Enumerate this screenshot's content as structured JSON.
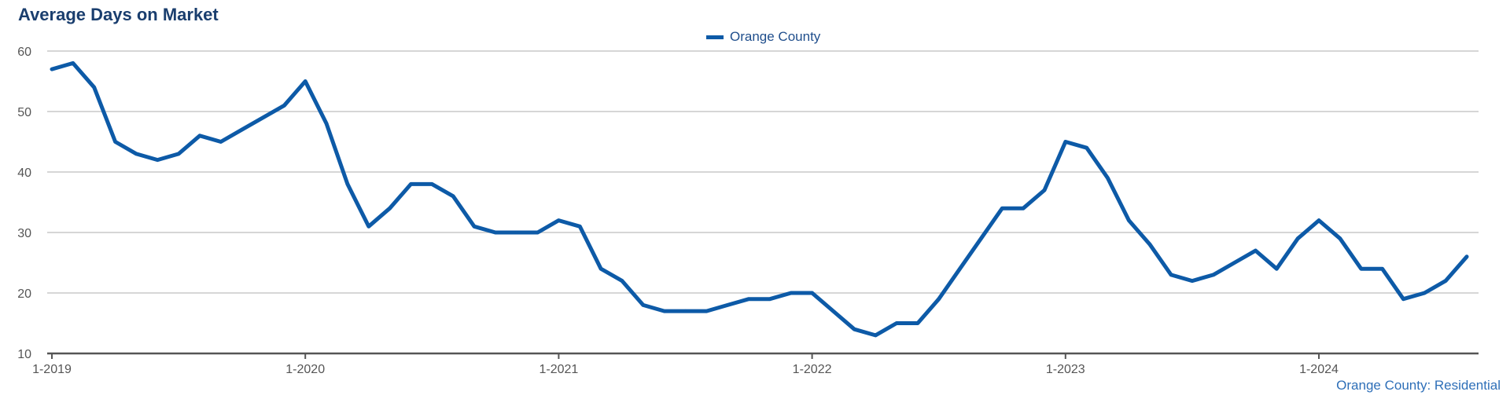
{
  "title": "Average Days on Market",
  "legend": [
    {
      "label": "Orange County",
      "color": "#0d5aa7"
    }
  ],
  "source_note": "Orange County: Residential",
  "colors": {
    "series": "#0d5aa7",
    "title": "#1a3e6e",
    "grid": "#c8c8c8",
    "axis": "#555555"
  },
  "chart_data": {
    "type": "line",
    "title": "Average Days on Market",
    "xlabel": "",
    "ylabel": "",
    "ylim": [
      10,
      60
    ],
    "yticks": [
      10,
      20,
      30,
      40,
      50,
      60
    ],
    "xticks": [
      {
        "label": "1-2019",
        "index": 0
      },
      {
        "label": "1-2020",
        "index": 12
      },
      {
        "label": "1-2021",
        "index": 24
      },
      {
        "label": "1-2022",
        "index": 36
      },
      {
        "label": "1-2023",
        "index": 48
      },
      {
        "label": "1-2024",
        "index": 60
      }
    ],
    "grid": true,
    "legend_position": "top-center",
    "series": [
      {
        "name": "Orange County",
        "values": [
          57,
          58,
          54,
          45,
          43,
          42,
          43,
          46,
          45,
          47,
          49,
          51,
          55,
          48,
          38,
          31,
          34,
          38,
          38,
          36,
          31,
          30,
          30,
          30,
          32,
          31,
          24,
          22,
          18,
          17,
          17,
          17,
          18,
          19,
          19,
          20,
          20,
          17,
          14,
          13,
          15,
          15,
          19,
          24,
          29,
          34,
          34,
          37,
          45,
          44,
          39,
          32,
          28,
          23,
          22,
          23,
          25,
          27,
          24,
          29,
          32,
          29,
          24,
          24,
          19,
          20,
          22,
          26
        ]
      }
    ]
  }
}
